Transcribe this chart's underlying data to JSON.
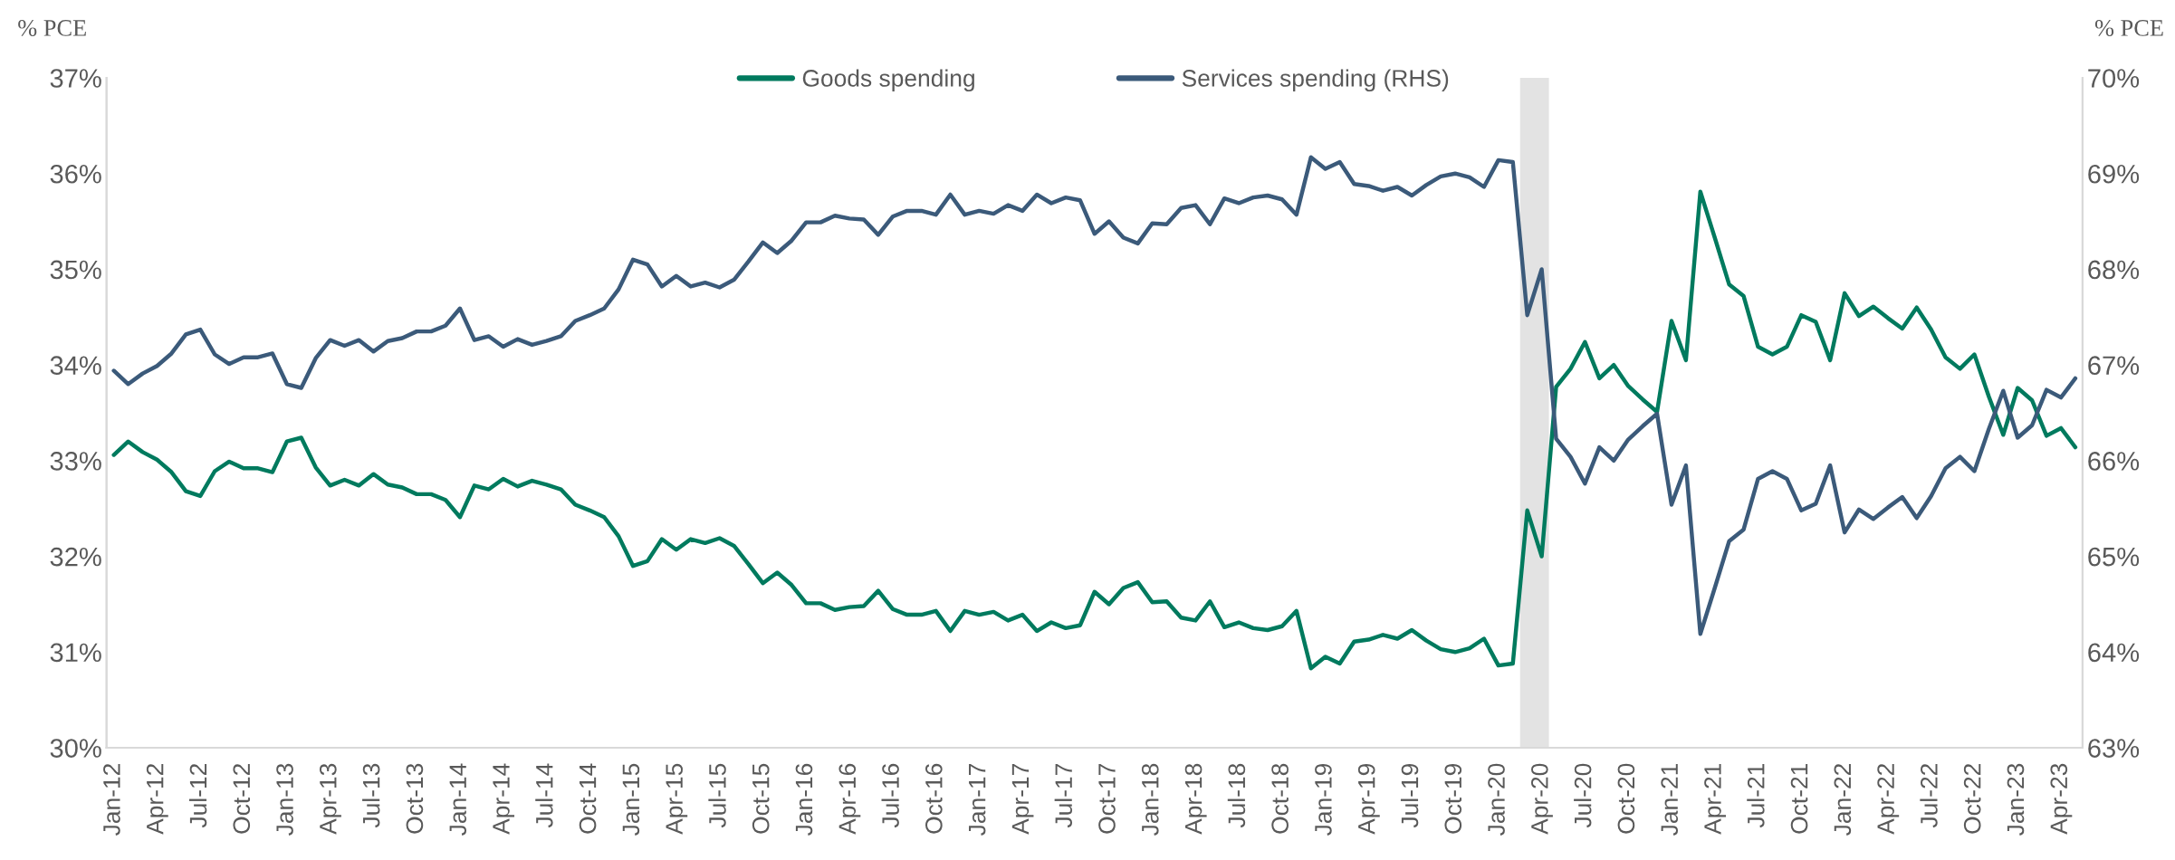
{
  "chart_data": {
    "type": "line",
    "ylabel": "% PCE",
    "y2label": "% PCE",
    "x": [
      "2012-01",
      "2012-02",
      "2012-03",
      "2012-04",
      "2012-05",
      "2012-06",
      "2012-07",
      "2012-08",
      "2012-09",
      "2012-10",
      "2012-11",
      "2012-12",
      "2013-01",
      "2013-02",
      "2013-03",
      "2013-04",
      "2013-05",
      "2013-06",
      "2013-07",
      "2013-08",
      "2013-09",
      "2013-10",
      "2013-11",
      "2013-12",
      "2014-01",
      "2014-02",
      "2014-03",
      "2014-04",
      "2014-05",
      "2014-06",
      "2014-07",
      "2014-08",
      "2014-09",
      "2014-10",
      "2014-11",
      "2014-12",
      "2015-01",
      "2015-02",
      "2015-03",
      "2015-04",
      "2015-05",
      "2015-06",
      "2015-07",
      "2015-08",
      "2015-09",
      "2015-10",
      "2015-11",
      "2015-12",
      "2016-01",
      "2016-02",
      "2016-03",
      "2016-04",
      "2016-05",
      "2016-06",
      "2016-07",
      "2016-08",
      "2016-09",
      "2016-10",
      "2016-11",
      "2016-12",
      "2017-01",
      "2017-02",
      "2017-03",
      "2017-04",
      "2017-05",
      "2017-06",
      "2017-07",
      "2017-08",
      "2017-09",
      "2017-10",
      "2017-11",
      "2017-12",
      "2018-01",
      "2018-02",
      "2018-03",
      "2018-04",
      "2018-05",
      "2018-06",
      "2018-07",
      "2018-08",
      "2018-09",
      "2018-10",
      "2018-11",
      "2018-12",
      "2019-01",
      "2019-02",
      "2019-03",
      "2019-04",
      "2019-05",
      "2019-06",
      "2019-07",
      "2019-08",
      "2019-09",
      "2019-10",
      "2019-11",
      "2019-12",
      "2020-01",
      "2020-02",
      "2020-03",
      "2020-04",
      "2020-05",
      "2020-06",
      "2020-07",
      "2020-08",
      "2020-09",
      "2020-10",
      "2020-11",
      "2020-12",
      "2021-01",
      "2021-02",
      "2021-03",
      "2021-04",
      "2021-05",
      "2021-06",
      "2021-07",
      "2021-08",
      "2021-09",
      "2021-10",
      "2021-11",
      "2021-12",
      "2022-01",
      "2022-02",
      "2022-03",
      "2022-04",
      "2022-05",
      "2022-06",
      "2022-07",
      "2022-08",
      "2022-09",
      "2022-10",
      "2022-11",
      "2022-12",
      "2023-01",
      "2023-02",
      "2023-03",
      "2023-04",
      "2023-05"
    ],
    "series": [
      {
        "name": "Goods spending",
        "color": "#007a5e",
        "values": [
          33.06,
          33.2,
          33.09,
          33.01,
          32.88,
          32.68,
          32.63,
          32.89,
          32.99,
          32.92,
          32.92,
          32.88,
          33.2,
          33.24,
          32.93,
          32.74,
          32.8,
          32.74,
          32.86,
          32.75,
          32.72,
          32.65,
          32.65,
          32.59,
          32.41,
          32.74,
          32.7,
          32.81,
          32.73,
          32.79,
          32.75,
          32.7,
          32.54,
          32.48,
          32.41,
          32.21,
          31.9,
          31.95,
          32.18,
          32.07,
          32.18,
          32.14,
          32.19,
          32.11,
          31.92,
          31.72,
          31.83,
          31.7,
          31.51,
          31.51,
          31.44,
          31.47,
          31.48,
          31.64,
          31.45,
          31.39,
          31.39,
          31.43,
          31.22,
          31.43,
          31.39,
          31.42,
          31.33,
          31.39,
          31.22,
          31.31,
          31.25,
          31.28,
          31.63,
          31.5,
          31.67,
          31.73,
          31.52,
          31.53,
          31.36,
          31.33,
          31.53,
          31.26,
          31.31,
          31.25,
          31.23,
          31.27,
          31.43,
          30.83,
          30.95,
          30.88,
          31.11,
          31.13,
          31.18,
          31.14,
          31.23,
          31.12,
          31.03,
          31.0,
          31.04,
          31.14,
          30.86,
          30.88,
          32.48,
          32.0,
          33.77,
          33.96,
          34.24,
          33.86,
          34.0,
          33.78,
          33.64,
          33.51,
          34.46,
          34.05,
          35.81,
          35.33,
          34.84,
          34.72,
          34.19,
          34.11,
          34.19,
          34.52,
          34.45,
          34.05,
          34.75,
          34.51,
          34.61,
          34.49,
          34.38,
          34.6,
          34.37,
          34.08,
          33.96,
          34.11,
          33.67,
          33.27,
          33.76,
          33.63,
          33.26,
          33.34,
          33.14
        ]
      },
      {
        "name": "Services spending (RHS)",
        "color": "#3b5a7a",
        "axis": "y2",
        "values": [
          66.94,
          66.8,
          66.91,
          66.99,
          67.12,
          67.32,
          67.37,
          67.11,
          67.01,
          67.08,
          67.08,
          67.12,
          66.8,
          66.76,
          67.07,
          67.26,
          67.2,
          67.26,
          67.14,
          67.25,
          67.28,
          67.35,
          67.35,
          67.41,
          67.59,
          67.26,
          67.3,
          67.19,
          67.27,
          67.21,
          67.25,
          67.3,
          67.46,
          67.52,
          67.59,
          67.79,
          68.1,
          68.05,
          67.82,
          67.93,
          67.82,
          67.86,
          67.81,
          67.89,
          68.08,
          68.28,
          68.17,
          68.3,
          68.49,
          68.49,
          68.56,
          68.53,
          68.52,
          68.36,
          68.55,
          68.61,
          68.61,
          68.57,
          68.78,
          68.57,
          68.61,
          68.58,
          68.67,
          68.61,
          68.78,
          68.69,
          68.75,
          68.72,
          68.37,
          68.5,
          68.33,
          68.27,
          68.48,
          68.47,
          68.64,
          68.67,
          68.47,
          68.74,
          68.69,
          68.75,
          68.77,
          68.73,
          68.57,
          69.17,
          69.05,
          69.12,
          68.89,
          68.87,
          68.82,
          68.86,
          68.77,
          68.88,
          68.97,
          69.0,
          68.96,
          68.86,
          69.14,
          69.12,
          67.52,
          68.0,
          66.23,
          66.04,
          65.76,
          66.14,
          66.0,
          66.22,
          66.36,
          66.49,
          65.54,
          65.95,
          64.19,
          64.67,
          65.16,
          65.28,
          65.81,
          65.89,
          65.81,
          65.48,
          65.55,
          65.95,
          65.25,
          65.49,
          65.39,
          65.51,
          65.62,
          65.4,
          65.63,
          65.92,
          66.04,
          65.89,
          66.33,
          66.73,
          66.24,
          66.37,
          66.74,
          66.66,
          66.86
        ]
      }
    ],
    "xlim": [
      "2011-12-16",
      "2023-05-16"
    ],
    "xticks": [
      {
        "value": "2012-01",
        "label": "Jan-12"
      },
      {
        "value": "2012-04",
        "label": "Apr-12"
      },
      {
        "value": "2012-07",
        "label": "Jul-12"
      },
      {
        "value": "2012-10",
        "label": "Oct-12"
      },
      {
        "value": "2013-01",
        "label": "Jan-13"
      },
      {
        "value": "2013-04",
        "label": "Apr-13"
      },
      {
        "value": "2013-07",
        "label": "Jul-13"
      },
      {
        "value": "2013-10",
        "label": "Oct-13"
      },
      {
        "value": "2014-01",
        "label": "Jan-14"
      },
      {
        "value": "2014-04",
        "label": "Apr-14"
      },
      {
        "value": "2014-07",
        "label": "Jul-14"
      },
      {
        "value": "2014-10",
        "label": "Oct-14"
      },
      {
        "value": "2015-01",
        "label": "Jan-15"
      },
      {
        "value": "2015-04",
        "label": "Apr-15"
      },
      {
        "value": "2015-07",
        "label": "Jul-15"
      },
      {
        "value": "2015-10",
        "label": "Oct-15"
      },
      {
        "value": "2016-01",
        "label": "Jan-16"
      },
      {
        "value": "2016-04",
        "label": "Apr-16"
      },
      {
        "value": "2016-07",
        "label": "Jul-16"
      },
      {
        "value": "2016-10",
        "label": "Oct-16"
      },
      {
        "value": "2017-01",
        "label": "Jan-17"
      },
      {
        "value": "2017-04",
        "label": "Apr-17"
      },
      {
        "value": "2017-07",
        "label": "Jul-17"
      },
      {
        "value": "2017-10",
        "label": "Oct-17"
      },
      {
        "value": "2018-01",
        "label": "Jan-18"
      },
      {
        "value": "2018-04",
        "label": "Apr-18"
      },
      {
        "value": "2018-07",
        "label": "Jul-18"
      },
      {
        "value": "2018-10",
        "label": "Oct-18"
      },
      {
        "value": "2019-01",
        "label": "Jan-19"
      },
      {
        "value": "2019-04",
        "label": "Apr-19"
      },
      {
        "value": "2019-07",
        "label": "Jul-19"
      },
      {
        "value": "2019-10",
        "label": "Oct-19"
      },
      {
        "value": "2020-01",
        "label": "Jan-20"
      },
      {
        "value": "2020-04",
        "label": "Apr-20"
      },
      {
        "value": "2020-07",
        "label": "Jul-20"
      },
      {
        "value": "2020-10",
        "label": "Oct-20"
      },
      {
        "value": "2021-01",
        "label": "Jan-21"
      },
      {
        "value": "2021-04",
        "label": "Apr-21"
      },
      {
        "value": "2021-07",
        "label": "Jul-21"
      },
      {
        "value": "2021-10",
        "label": "Oct-21"
      },
      {
        "value": "2022-01",
        "label": "Jan-22"
      },
      {
        "value": "2022-04",
        "label": "Apr-22"
      },
      {
        "value": "2022-07",
        "label": "Jul-22"
      },
      {
        "value": "2022-10",
        "label": "Oct-22"
      },
      {
        "value": "2023-01",
        "label": "Jan-23"
      },
      {
        "value": "2023-04",
        "label": "Apr-23"
      }
    ],
    "ylim": [
      30,
      37
    ],
    "yticks": [
      {
        "value": 30,
        "label": "30%"
      },
      {
        "value": 31,
        "label": "31%"
      },
      {
        "value": 32,
        "label": "32%"
      },
      {
        "value": 33,
        "label": "33%"
      },
      {
        "value": 34,
        "label": "34%"
      },
      {
        "value": 35,
        "label": "35%"
      },
      {
        "value": 36,
        "label": "36%"
      },
      {
        "value": 37,
        "label": "37%"
      }
    ],
    "y2lim": [
      63,
      70
    ],
    "y2ticks": [
      {
        "value": 63,
        "label": "63%"
      },
      {
        "value": 64,
        "label": "64%"
      },
      {
        "value": 65,
        "label": "65%"
      },
      {
        "value": 66,
        "label": "66%"
      },
      {
        "value": 67,
        "label": "67%"
      },
      {
        "value": 68,
        "label": "68%"
      },
      {
        "value": 69,
        "label": "69%"
      },
      {
        "value": 70,
        "label": "70%"
      }
    ],
    "bands": [
      {
        "axis": "x",
        "from": "2020-02-16",
        "to": "2020-04-16",
        "color": "#e3e3e3"
      }
    ],
    "legend": "top",
    "grid": false,
    "marker": "none",
    "line_style": "solid"
  }
}
